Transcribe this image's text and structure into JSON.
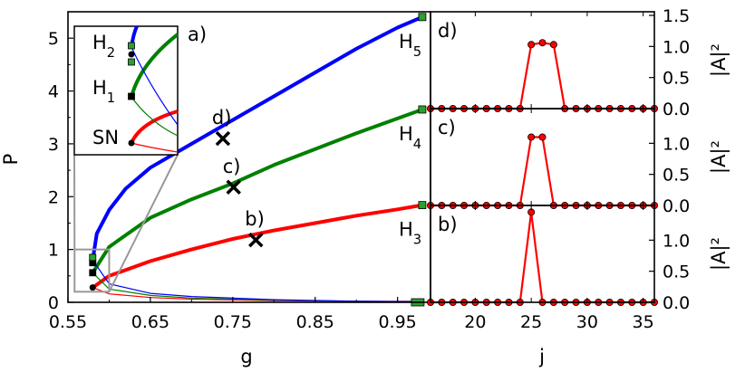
{
  "chart_data": [
    {
      "type": "line",
      "panel_label": "a)",
      "xlabel": "g",
      "ylabel": "P",
      "xlim": [
        0.55,
        0.99
      ],
      "ylim": [
        0,
        5.5
      ],
      "xticks": [
        "0.55",
        "0.65",
        "0.75",
        "0.85",
        "0.95"
      ],
      "yticks": [
        "0",
        "1",
        "2",
        "3",
        "4",
        "5"
      ],
      "series": [
        {
          "color": "#ff0000",
          "branch": "upper",
          "x": [
            0.58,
            0.6,
            0.65,
            0.7,
            0.75,
            0.8,
            0.85,
            0.9,
            0.95,
            0.98
          ],
          "y": [
            0.28,
            0.5,
            0.78,
            1.0,
            1.2,
            1.36,
            1.5,
            1.64,
            1.76,
            1.84
          ]
        },
        {
          "color": "#ff0000",
          "branch": "lower",
          "x": [
            0.58,
            0.6,
            0.65,
            0.7,
            0.8,
            0.9,
            0.98
          ],
          "y": [
            0.28,
            0.16,
            0.09,
            0.06,
            0.03,
            0.02,
            0.02
          ]
        },
        {
          "color": "#008000",
          "branch": "upper",
          "x": [
            0.58,
            0.6,
            0.65,
            0.7,
            0.75,
            0.8,
            0.85,
            0.9,
            0.95,
            0.98
          ],
          "y": [
            0.56,
            1.05,
            1.6,
            1.95,
            2.25,
            2.6,
            2.9,
            3.2,
            3.48,
            3.65
          ]
        },
        {
          "color": "#008000",
          "branch": "lower",
          "x": [
            0.58,
            0.6,
            0.65,
            0.7,
            0.8,
            0.9,
            0.98
          ],
          "y": [
            0.56,
            0.25,
            0.13,
            0.08,
            0.04,
            0.02,
            0.01
          ]
        },
        {
          "color": "#0000ff",
          "branch": "upper",
          "x": [
            0.58,
            0.585,
            0.6,
            0.62,
            0.65,
            0.7,
            0.75,
            0.8,
            0.85,
            0.9,
            0.95,
            0.98
          ],
          "y": [
            0.8,
            1.3,
            1.75,
            2.15,
            2.55,
            3.0,
            3.45,
            3.9,
            4.35,
            4.8,
            5.2,
            5.4
          ]
        },
        {
          "color": "#0000ff",
          "branch": "lower",
          "x": [
            0.58,
            0.6,
            0.65,
            0.7,
            0.8,
            0.9,
            0.98
          ],
          "y": [
            0.8,
            0.35,
            0.17,
            0.11,
            0.05,
            0.02,
            0.01
          ]
        }
      ],
      "markers": [
        {
          "label": "d)",
          "x": 0.738,
          "y": 3.1
        },
        {
          "label": "c)",
          "x": 0.751,
          "y": 2.18
        },
        {
          "label": "b)",
          "x": 0.778,
          "y": 1.18
        }
      ],
      "end_labels": [
        {
          "text": "H5",
          "x": 0.98,
          "y": 5.4
        },
        {
          "text": "H4",
          "x": 0.98,
          "y": 3.65
        },
        {
          "text": "H3",
          "x": 0.98,
          "y": 1.84
        }
      ],
      "inset_labels": [
        "H2",
        "H1",
        "SN"
      ]
    },
    {
      "type": "line",
      "panel_label": "d)",
      "xlabel": "j",
      "ylabel": "|A|²",
      "xlim": [
        16,
        36
      ],
      "ylim": [
        0,
        1.5
      ],
      "yticks": [
        "0.0",
        "0.5",
        "1.0",
        "1.5"
      ],
      "x": [
        16,
        17,
        18,
        19,
        20,
        21,
        22,
        23,
        24,
        25,
        26,
        27,
        28,
        29,
        30,
        31,
        32,
        33,
        34,
        35,
        36
      ],
      "values": [
        0,
        0,
        0,
        0,
        0,
        0,
        0,
        0,
        0,
        1.03,
        1.06,
        1.03,
        0,
        0,
        0,
        0,
        0,
        0,
        0,
        0,
        0
      ]
    },
    {
      "type": "line",
      "panel_label": "c)",
      "xlabel": "j",
      "ylabel": "|A|²",
      "xlim": [
        16,
        36
      ],
      "ylim": [
        0,
        1.5
      ],
      "yticks": [
        "0.0",
        "0.5",
        "1.0"
      ],
      "x": [
        16,
        17,
        18,
        19,
        20,
        21,
        22,
        23,
        24,
        25,
        26,
        27,
        28,
        29,
        30,
        31,
        32,
        33,
        34,
        35,
        36
      ],
      "values": [
        0,
        0,
        0,
        0,
        0,
        0,
        0,
        0,
        0,
        1.1,
        1.1,
        0,
        0,
        0,
        0,
        0,
        0,
        0,
        0,
        0,
        0
      ]
    },
    {
      "type": "line",
      "panel_label": "b)",
      "xlabel": "j",
      "ylabel": "|A|²",
      "xlim": [
        16,
        36
      ],
      "ylim": [
        0,
        1.5
      ],
      "xticks": [
        "20",
        "25",
        "30",
        "35"
      ],
      "yticks": [
        "0.0",
        "0.5",
        "1.0"
      ],
      "x": [
        16,
        17,
        18,
        19,
        20,
        21,
        22,
        23,
        24,
        25,
        26,
        27,
        28,
        29,
        30,
        31,
        32,
        33,
        34,
        35,
        36
      ],
      "values": [
        0,
        0,
        0,
        0,
        0,
        0,
        0,
        0,
        0,
        1.45,
        0,
        0,
        0,
        0,
        0,
        0,
        0,
        0,
        0,
        0,
        0
      ]
    }
  ],
  "colors": {
    "red": "#ff0000",
    "green": "#008000",
    "blue": "#0000ff",
    "marker_green": "#2ca02c",
    "frame": "#000000",
    "zoom": "#999999"
  }
}
